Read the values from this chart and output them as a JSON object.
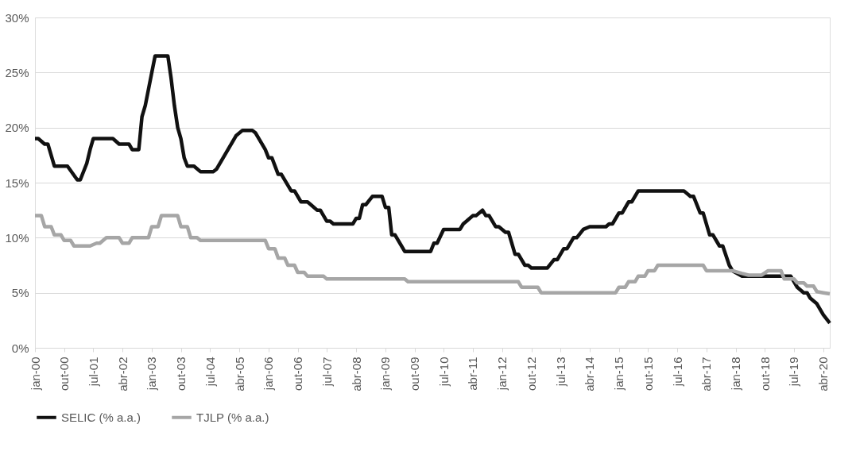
{
  "chart_data": {
    "type": "line",
    "legend": "bottom",
    "grid": "y",
    "marker": "none",
    "line_style": "solid",
    "xlim": [
      "2000-01",
      "2020-06"
    ],
    "ylim": [
      0,
      30
    ],
    "yticks": [
      {
        "value": 0,
        "label": "0%"
      },
      {
        "value": 5,
        "label": "5%"
      },
      {
        "value": 10,
        "label": "10%"
      },
      {
        "value": 15,
        "label": "15%"
      },
      {
        "value": 20,
        "label": "20%"
      },
      {
        "value": 25,
        "label": "25%"
      },
      {
        "value": 30,
        "label": "30%"
      }
    ],
    "xticks": [
      {
        "value": "2000-01",
        "label": "jan-00"
      },
      {
        "value": "2000-10",
        "label": "out-00"
      },
      {
        "value": "2001-07",
        "label": "jul-01"
      },
      {
        "value": "2002-04",
        "label": "abr-02"
      },
      {
        "value": "2003-01",
        "label": "jan-03"
      },
      {
        "value": "2003-10",
        "label": "out-03"
      },
      {
        "value": "2004-07",
        "label": "jul-04"
      },
      {
        "value": "2005-04",
        "label": "abr-05"
      },
      {
        "value": "2006-01",
        "label": "jan-06"
      },
      {
        "value": "2006-10",
        "label": "out-06"
      },
      {
        "value": "2007-07",
        "label": "jul-07"
      },
      {
        "value": "2008-04",
        "label": "abr-08"
      },
      {
        "value": "2009-01",
        "label": "jan-09"
      },
      {
        "value": "2009-10",
        "label": "out-09"
      },
      {
        "value": "2010-07",
        "label": "jul-10"
      },
      {
        "value": "2011-04",
        "label": "abr-11"
      },
      {
        "value": "2012-01",
        "label": "jan-12"
      },
      {
        "value": "2012-10",
        "label": "out-12"
      },
      {
        "value": "2013-07",
        "label": "jul-13"
      },
      {
        "value": "2014-04",
        "label": "abr-14"
      },
      {
        "value": "2015-01",
        "label": "jan-15"
      },
      {
        "value": "2015-10",
        "label": "out-15"
      },
      {
        "value": "2016-07",
        "label": "jul-16"
      },
      {
        "value": "2017-04",
        "label": "abr-17"
      },
      {
        "value": "2018-01",
        "label": "jan-18"
      },
      {
        "value": "2018-10",
        "label": "out-18"
      },
      {
        "value": "2019-07",
        "label": "jul-19"
      },
      {
        "value": "2020-04",
        "label": "abr-20"
      }
    ],
    "series": [
      {
        "name": "SELIC (% a.a.)",
        "color": "#111111",
        "x": [
          "2000-01",
          "2000-02",
          "2000-04",
          "2000-05",
          "2000-07",
          "2000-11",
          "2001-02",
          "2001-03",
          "2001-05",
          "2001-06",
          "2001-07",
          "2002-01",
          "2002-03",
          "2002-06",
          "2002-07",
          "2002-09",
          "2002-10",
          "2002-11",
          "2003-01",
          "2003-02",
          "2003-06",
          "2003-07",
          "2003-08",
          "2003-09",
          "2003-10",
          "2003-11",
          "2003-12",
          "2004-02",
          "2004-04",
          "2004-08",
          "2004-09",
          "2005-03",
          "2005-05",
          "2005-08",
          "2005-09",
          "2005-12",
          "2006-01",
          "2006-02",
          "2006-04",
          "2006-05",
          "2006-08",
          "2006-09",
          "2006-11",
          "2007-01",
          "2007-02",
          "2007-04",
          "2007-05",
          "2007-07",
          "2007-08",
          "2007-09",
          "2008-03",
          "2008-04",
          "2008-05",
          "2008-06",
          "2008-07",
          "2008-09",
          "2008-12",
          "2009-01",
          "2009-02",
          "2009-03",
          "2009-04",
          "2009-07",
          "2010-03",
          "2010-04",
          "2010-05",
          "2010-07",
          "2010-12",
          "2011-01",
          "2011-02",
          "2011-04",
          "2011-05",
          "2011-07",
          "2011-08",
          "2011-09",
          "2011-11",
          "2011-12",
          "2012-02",
          "2012-03",
          "2012-05",
          "2012-06",
          "2012-08",
          "2012-09",
          "2012-10",
          "2013-03",
          "2013-05",
          "2013-06",
          "2013-08",
          "2013-09",
          "2013-11",
          "2013-12",
          "2014-02",
          "2014-04",
          "2014-09",
          "2014-10",
          "2014-11",
          "2015-01",
          "2015-02",
          "2015-04",
          "2015-05",
          "2015-07",
          "2016-09",
          "2016-11",
          "2016-12",
          "2017-02",
          "2017-03",
          "2017-05",
          "2017-06",
          "2017-08",
          "2017-09",
          "2017-11",
          "2017-12",
          "2018-03",
          "2019-06",
          "2019-08",
          "2019-10",
          "2019-11",
          "2019-12",
          "2020-02",
          "2020-04",
          "2020-06"
        ],
        "values": [
          19.0,
          19.0,
          18.5,
          18.5,
          16.5,
          16.5,
          15.25,
          15.25,
          16.75,
          18.0,
          19.0,
          19.0,
          18.5,
          18.5,
          18.0,
          18.0,
          21.0,
          22.0,
          25.0,
          26.5,
          26.5,
          24.5,
          22.0,
          20.0,
          19.0,
          17.25,
          16.5,
          16.5,
          16.0,
          16.0,
          16.25,
          19.25,
          19.75,
          19.75,
          19.5,
          18.0,
          17.25,
          17.25,
          15.75,
          15.75,
          14.25,
          14.25,
          13.25,
          13.25,
          13.0,
          12.5,
          12.5,
          11.5,
          11.5,
          11.25,
          11.25,
          11.75,
          11.75,
          13.0,
          13.0,
          13.75,
          13.75,
          12.75,
          12.75,
          10.25,
          10.25,
          8.75,
          8.75,
          9.5,
          9.5,
          10.75,
          10.75,
          11.25,
          11.5,
          12.0,
          12.0,
          12.5,
          12.0,
          12.0,
          11.0,
          11.0,
          10.5,
          10.5,
          8.5,
          8.5,
          7.5,
          7.5,
          7.25,
          7.25,
          8.0,
          8.0,
          9.0,
          9.0,
          10.0,
          10.0,
          10.75,
          11.0,
          11.0,
          11.25,
          11.25,
          12.25,
          12.25,
          13.25,
          13.25,
          14.25,
          14.25,
          13.75,
          13.75,
          12.25,
          12.25,
          10.25,
          10.25,
          9.25,
          9.25,
          7.5,
          7.0,
          6.5,
          6.5,
          5.5,
          5.0,
          5.0,
          4.5,
          4.0,
          3.0,
          2.25
        ]
      },
      {
        "name": "TJLP (% a.a.)",
        "color": "#a6a6a6",
        "x": [
          "2000-01",
          "2000-03",
          "2000-04",
          "2000-06",
          "2000-07",
          "2000-09",
          "2000-10",
          "2000-12",
          "2001-01",
          "2001-06",
          "2001-08",
          "2001-09",
          "2001-11",
          "2002-03",
          "2002-04",
          "2002-06",
          "2002-07",
          "2002-12",
          "2003-01",
          "2003-03",
          "2003-04",
          "2003-09",
          "2003-10",
          "2003-12",
          "2004-01",
          "2004-03",
          "2004-04",
          "2005-12",
          "2006-01",
          "2006-03",
          "2006-04",
          "2006-06",
          "2006-07",
          "2006-09",
          "2006-10",
          "2006-12",
          "2007-01",
          "2007-06",
          "2007-07",
          "2009-07",
          "2009-08",
          "2012-06",
          "2012-07",
          "2012-12",
          "2013-01",
          "2014-12",
          "2015-01",
          "2015-03",
          "2015-04",
          "2015-06",
          "2015-07",
          "2015-09",
          "2015-10",
          "2015-12",
          "2016-01",
          "2017-03",
          "2017-04",
          "2017-12",
          "2018-03",
          "2018-05",
          "2018-09",
          "2018-11",
          "2019-03",
          "2019-04",
          "2019-07",
          "2019-08",
          "2019-10",
          "2019-11",
          "2020-01",
          "2020-02",
          "2020-04",
          "2020-06"
        ],
        "values": [
          12.0,
          12.0,
          11.0,
          11.0,
          10.25,
          10.25,
          9.75,
          9.75,
          9.25,
          9.25,
          9.5,
          9.5,
          10.0,
          10.0,
          9.5,
          9.5,
          10.0,
          10.0,
          11.0,
          11.0,
          12.0,
          12.0,
          11.0,
          11.0,
          10.0,
          10.0,
          9.75,
          9.75,
          9.0,
          9.0,
          8.15,
          8.15,
          7.5,
          7.5,
          6.85,
          6.85,
          6.5,
          6.5,
          6.25,
          6.25,
          6.0,
          6.0,
          5.5,
          5.5,
          5.0,
          5.0,
          5.5,
          5.5,
          6.0,
          6.0,
          6.5,
          6.5,
          7.0,
          7.0,
          7.5,
          7.5,
          7.0,
          7.0,
          6.75,
          6.6,
          6.6,
          7.0,
          7.0,
          6.25,
          6.25,
          5.9,
          5.9,
          5.6,
          5.6,
          5.1,
          5.0,
          4.9
        ]
      }
    ]
  }
}
